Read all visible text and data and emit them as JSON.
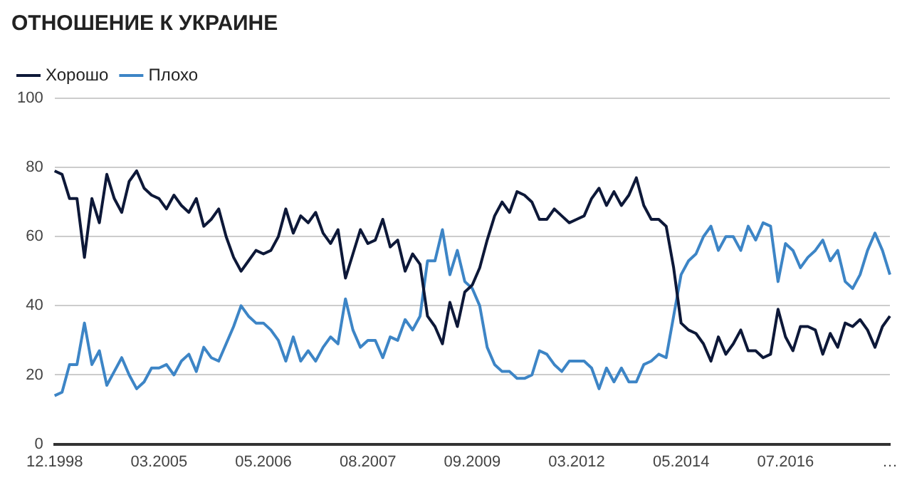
{
  "chart_data": {
    "type": "line",
    "title": "ОТНОШЕНИЕ К УКРАИНЕ",
    "categories": [
      "12.1998",
      null,
      null,
      null,
      null,
      null,
      null,
      null,
      null,
      null,
      null,
      null,
      null,
      null,
      "03.2005",
      null,
      null,
      null,
      null,
      null,
      null,
      null,
      null,
      null,
      null,
      null,
      null,
      null,
      "05.2006",
      null,
      null,
      null,
      null,
      null,
      null,
      null,
      null,
      null,
      null,
      null,
      null,
      null,
      "08.2007",
      null,
      null,
      null,
      null,
      null,
      null,
      null,
      null,
      null,
      null,
      null,
      null,
      null,
      "09.2009",
      null,
      null,
      null,
      null,
      null,
      null,
      null,
      null,
      null,
      null,
      null,
      null,
      null,
      "03.2012",
      null,
      null,
      null,
      null,
      null,
      null,
      null,
      null,
      null,
      null,
      null,
      null,
      null,
      "05.2014",
      null,
      null,
      null,
      null,
      null,
      null,
      null,
      null,
      null,
      null,
      null,
      null,
      null,
      "07.2016",
      null,
      null,
      null,
      null,
      null,
      null,
      null,
      null,
      null,
      null,
      null,
      null,
      null,
      "…"
    ],
    "series": [
      {
        "name": "Хорошо",
        "color": "#0d1838",
        "values": [
          79,
          78,
          71,
          71,
          54,
          71,
          64,
          78,
          71,
          67,
          76,
          79,
          74,
          72,
          71,
          68,
          72,
          69,
          67,
          71,
          63,
          65,
          68,
          60,
          54,
          50,
          53,
          56,
          55,
          56,
          60,
          68,
          61,
          66,
          64,
          67,
          61,
          58,
          62,
          48,
          55,
          62,
          58,
          59,
          65,
          57,
          59,
          50,
          55,
          52,
          37,
          34,
          29,
          41,
          34,
          44,
          46,
          51,
          59,
          66,
          70,
          67,
          73,
          72,
          70,
          65,
          65,
          68,
          66,
          64,
          65,
          66,
          71,
          74,
          69,
          73,
          69,
          72,
          77,
          69,
          65,
          65,
          63,
          51,
          35,
          33,
          32,
          29,
          24,
          31,
          26,
          29,
          33,
          27,
          27,
          25,
          26,
          39,
          31,
          27,
          34,
          34,
          33,
          26,
          32,
          28,
          35,
          34,
          36,
          33,
          28,
          34,
          37
        ]
      },
      {
        "name": "Плохо",
        "color": "#3d85c6",
        "values": [
          14,
          15,
          23,
          23,
          35,
          23,
          27,
          17,
          21,
          25,
          20,
          16,
          18,
          22,
          22,
          23,
          20,
          24,
          26,
          21,
          28,
          25,
          24,
          29,
          34,
          40,
          37,
          35,
          35,
          33,
          30,
          24,
          31,
          24,
          27,
          24,
          28,
          31,
          29,
          42,
          33,
          28,
          30,
          30,
          25,
          31,
          30,
          36,
          33,
          37,
          53,
          53,
          62,
          49,
          56,
          47,
          45,
          40,
          28,
          23,
          21,
          21,
          19,
          19,
          20,
          27,
          26,
          23,
          21,
          24,
          24,
          24,
          22,
          16,
          22,
          18,
          22,
          18,
          18,
          23,
          24,
          26,
          25,
          37,
          49,
          53,
          55,
          60,
          63,
          56,
          60,
          60,
          56,
          63,
          59,
          64,
          63,
          47,
          58,
          56,
          51,
          54,
          56,
          59,
          53,
          56,
          47,
          45,
          49,
          56,
          61,
          56,
          49
        ]
      }
    ],
    "ylim": [
      0,
      100
    ],
    "yticks": [
      0,
      20,
      40,
      60,
      80,
      100
    ],
    "grid": "y",
    "legend": "top left",
    "marker": "none",
    "line_style": "solid"
  }
}
